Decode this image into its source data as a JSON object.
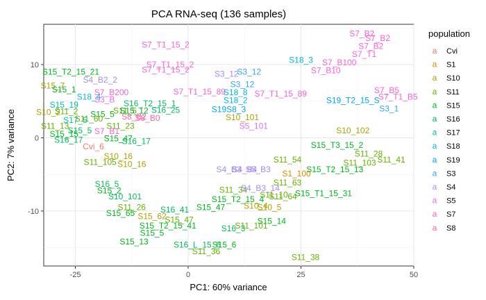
{
  "chart_data": {
    "type": "scatter",
    "title": "PCA RNA-seq (136 samples)",
    "xlabel": "PC1: 60% variance",
    "ylabel": "PC2: 7% variance",
    "xlim": [
      -32,
      50
    ],
    "ylim": [
      -17.5,
      15.5
    ],
    "xticks": [
      -25,
      0,
      25,
      50
    ],
    "yticks": [
      -10,
      0,
      10
    ],
    "grid": true,
    "legend_title": "population",
    "legend_position": "right",
    "populations": [
      {
        "name": "Cvi",
        "color": "#F8766D"
      },
      {
        "name": "S1",
        "color": "#DB8E00"
      },
      {
        "name": "S10",
        "color": "#AEA200"
      },
      {
        "name": "S11",
        "color": "#64B200"
      },
      {
        "name": "S15",
        "color": "#00B81B"
      },
      {
        "name": "S16",
        "color": "#00BD5C"
      },
      {
        "name": "S17",
        "color": "#00C1A7"
      },
      {
        "name": "S18",
        "color": "#00BADE"
      },
      {
        "name": "S19",
        "color": "#00A6FF"
      },
      {
        "name": "S3",
        "color": "#35A2FF"
      },
      {
        "name": "S4",
        "color": "#A58AFF"
      },
      {
        "name": "S5",
        "color": "#DF70F8"
      },
      {
        "name": "S7",
        "color": "#FB61D7"
      },
      {
        "name": "S8",
        "color": "#FF66A8"
      }
    ],
    "points": [
      {
        "label": "S7_B2",
        "x": 38.5,
        "y": 14.2,
        "group": "S7"
      },
      {
        "label": "S7_B2",
        "x": 42,
        "y": 13.6,
        "group": "S7"
      },
      {
        "label": "S7_B2",
        "x": 40.5,
        "y": 12.5,
        "group": "S7"
      },
      {
        "label": "S7_T1",
        "x": 39,
        "y": 11.4,
        "group": "S7"
      },
      {
        "label": "S18_3",
        "x": 25,
        "y": 10.6,
        "group": "S18"
      },
      {
        "label": "S7_B100",
        "x": 33.5,
        "y": 10.3,
        "group": "S7"
      },
      {
        "label": "S7_B10",
        "x": 30.5,
        "y": 9.2,
        "group": "S7"
      },
      {
        "label": "S7_B5",
        "x": 44,
        "y": 6.5,
        "group": "S7"
      },
      {
        "label": "S7_T1_B5",
        "x": 46.5,
        "y": 5.6,
        "group": "S7"
      },
      {
        "label": "S19_T2_15_S",
        "x": 36.5,
        "y": 5.1,
        "group": "S19"
      },
      {
        "label": "S3_1",
        "x": 44.5,
        "y": 4.0,
        "group": "S3"
      },
      {
        "label": "S7_T1_15_2",
        "x": -5,
        "y": 12.7,
        "group": "S7"
      },
      {
        "label": "S7_T1_15_2",
        "x": -4,
        "y": 10.0,
        "group": "S7"
      },
      {
        "label": "S7_T1_15_2",
        "x": -5,
        "y": 9.3,
        "group": "S7"
      },
      {
        "label": "S3_12",
        "x": 8.5,
        "y": 8.7,
        "group": "S4"
      },
      {
        "label": "S3_12",
        "x": 13.5,
        "y": 9.0,
        "group": "S3"
      },
      {
        "label": "S3_12",
        "x": 12,
        "y": 7.3,
        "group": "S3"
      },
      {
        "label": "S7_T1_15_89",
        "x": 2.5,
        "y": 6.3,
        "group": "S7"
      },
      {
        "label": "S18_8",
        "x": 10.5,
        "y": 6.2,
        "group": "S18"
      },
      {
        "label": "S7_T1_15_89",
        "x": 20.5,
        "y": 6.0,
        "group": "S7"
      },
      {
        "label": "S18_2",
        "x": 10.5,
        "y": 5.1,
        "group": "S18"
      },
      {
        "label": "S19S8_3",
        "x": 9,
        "y": 3.9,
        "group": "S19"
      },
      {
        "label": "S10_101",
        "x": 12,
        "y": 2.8,
        "group": "S10"
      },
      {
        "label": "S5_101",
        "x": 14.5,
        "y": 1.6,
        "group": "S5"
      },
      {
        "label": "S10_102",
        "x": 36.5,
        "y": 1.0,
        "group": "S10"
      },
      {
        "label": "S15_T3_15_2",
        "x": 33,
        "y": -1.0,
        "group": "S15"
      },
      {
        "label": "S11_28",
        "x": 40,
        "y": -2.2,
        "group": "S11"
      },
      {
        "label": "S11_41",
        "x": 45,
        "y": -3.0,
        "group": "S11"
      },
      {
        "label": "S11_103",
        "x": 38,
        "y": -3.4,
        "group": "S11"
      },
      {
        "label": "S11_54",
        "x": 22,
        "y": -3.0,
        "group": "S11"
      },
      {
        "label": "S15_T2_15_13",
        "x": 32.5,
        "y": -4.3,
        "group": "S15"
      },
      {
        "label": "S4_B3",
        "x": 9,
        "y": -4.3,
        "group": "S4"
      },
      {
        "label": "S4_B4",
        "x": 12.5,
        "y": -4.3,
        "group": "S4"
      },
      {
        "label": "S5_B3",
        "x": 15.5,
        "y": -4.3,
        "group": "S4"
      },
      {
        "label": "S1_100",
        "x": 24,
        "y": -4.9,
        "group": "S1"
      },
      {
        "label": "S11_63",
        "x": 22,
        "y": -6.1,
        "group": "S11"
      },
      {
        "label": "S11_34",
        "x": 10,
        "y": -7.1,
        "group": "S11"
      },
      {
        "label": "S4_B3_14",
        "x": 16,
        "y": -6.9,
        "group": "S4"
      },
      {
        "label": "S11_10",
        "x": 19,
        "y": -7.8,
        "group": "S11"
      },
      {
        "label": "S11_64",
        "x": 21,
        "y": -8.0,
        "group": "S11"
      },
      {
        "label": "S15_T1_15_31",
        "x": 30,
        "y": -7.6,
        "group": "S15"
      },
      {
        "label": "S15_T2_15_4",
        "x": 11,
        "y": -8.4,
        "group": "S15"
      },
      {
        "label": "S10_4",
        "x": 15,
        "y": -9.3,
        "group": "S10"
      },
      {
        "label": "S10_5",
        "x": 18,
        "y": -9.5,
        "group": "S10"
      },
      {
        "label": "S15_14",
        "x": 18.5,
        "y": -11.4,
        "group": "S15"
      },
      {
        "label": "S11_101",
        "x": 14,
        "y": -12.0,
        "group": "S11"
      },
      {
        "label": "S16_3",
        "x": 10,
        "y": -12.4,
        "group": "S16"
      },
      {
        "label": "S11_38",
        "x": 26,
        "y": -16.3,
        "group": "S11"
      },
      {
        "label": "S15_T2_15_21",
        "x": -26,
        "y": 9.0,
        "group": "S15"
      },
      {
        "label": "S4_B2_2",
        "x": -19.5,
        "y": 7.9,
        "group": "S4"
      },
      {
        "label": "S15_7",
        "x": -30,
        "y": 7.1,
        "group": "S10"
      },
      {
        "label": "S15_1",
        "x": -27.5,
        "y": 6.6,
        "group": "S15"
      },
      {
        "label": "S7_B200",
        "x": -17,
        "y": 6.2,
        "group": "S7"
      },
      {
        "label": "S18_4",
        "x": -22,
        "y": 5.6,
        "group": "S18"
      },
      {
        "label": "S3_B",
        "x": -18.5,
        "y": 5.2,
        "group": "S5"
      },
      {
        "label": "S16_T2_15_1",
        "x": -8.5,
        "y": 4.7,
        "group": "S16"
      },
      {
        "label": "S15_19",
        "x": -27.5,
        "y": 4.5,
        "group": "S17"
      },
      {
        "label": "S10_2",
        "x": -31,
        "y": 3.5,
        "group": "S10"
      },
      {
        "label": "S11_5",
        "x": -14,
        "y": 3.7,
        "group": "S11"
      },
      {
        "label": "S15_12",
        "x": -12,
        "y": 3.7,
        "group": "S15"
      },
      {
        "label": "S16_25",
        "x": -5,
        "y": 3.8,
        "group": "S16"
      },
      {
        "label": "S11_2",
        "x": -27,
        "y": 3.6,
        "group": "S11"
      },
      {
        "label": "S15_5",
        "x": -19,
        "y": 3.2,
        "group": "S15"
      },
      {
        "label": "S8_B2",
        "x": -12,
        "y": 2.9,
        "group": "S8"
      },
      {
        "label": "S8_B0",
        "x": -9,
        "y": 2.7,
        "group": "S8"
      },
      {
        "label": "S11_60",
        "x": -22,
        "y": 2.6,
        "group": "S11"
      },
      {
        "label": "S17_5",
        "x": -25,
        "y": 2.4,
        "group": "S17"
      },
      {
        "label": "S11_23",
        "x": -15,
        "y": 1.6,
        "group": "S11"
      },
      {
        "label": "S11_13",
        "x": -29.5,
        "y": 1.6,
        "group": "S11"
      },
      {
        "label": "S15_5",
        "x": -24,
        "y": 1.0,
        "group": "S16"
      },
      {
        "label": "S7_B1",
        "x": -18,
        "y": 0.9,
        "group": "S7"
      },
      {
        "label": "S15_15",
        "x": -27.5,
        "y": 0.5,
        "group": "S15"
      },
      {
        "label": "S16_17",
        "x": -26.5,
        "y": -0.3,
        "group": "S16"
      },
      {
        "label": "S15_47",
        "x": -15.5,
        "y": -0.1,
        "group": "S15"
      },
      {
        "label": "S16_17",
        "x": -11.5,
        "y": -0.5,
        "group": "S16"
      },
      {
        "label": "Cvi_6",
        "x": -21,
        "y": -1.2,
        "group": "Cvi"
      },
      {
        "label": "S10_16",
        "x": -15.5,
        "y": -2.5,
        "group": "S10"
      },
      {
        "label": "S11_105",
        "x": -19.5,
        "y": -3.3,
        "group": "S11"
      },
      {
        "label": "S10_16",
        "x": -12.5,
        "y": -3.6,
        "group": "S10"
      },
      {
        "label": "S16_5",
        "x": -18,
        "y": -6.3,
        "group": "S16"
      },
      {
        "label": "S15_2",
        "x": -17.5,
        "y": -7.2,
        "group": "S15"
      },
      {
        "label": "S10_101",
        "x": -14,
        "y": -8.0,
        "group": "S16"
      },
      {
        "label": "S11_26",
        "x": -12.5,
        "y": -9.5,
        "group": "S11"
      },
      {
        "label": "S16_41",
        "x": -3,
        "y": -9.8,
        "group": "S16"
      },
      {
        "label": "S15_47",
        "x": 5,
        "y": -9.5,
        "group": "S15"
      },
      {
        "label": "S15_65",
        "x": -15,
        "y": -10.3,
        "group": "S15"
      },
      {
        "label": "S15_62",
        "x": -8,
        "y": -10.7,
        "group": "S10"
      },
      {
        "label": "S15_47",
        "x": -2,
        "y": -11.2,
        "group": "S11"
      },
      {
        "label": "S15_T2_15_41",
        "x": -4.5,
        "y": -12.0,
        "group": "S15"
      },
      {
        "label": "S15_5",
        "x": -8,
        "y": -13.0,
        "group": "S15"
      },
      {
        "label": "S15_13",
        "x": -12,
        "y": -14.2,
        "group": "S15"
      },
      {
        "label": "S16_L_15_6",
        "x": 2,
        "y": -14.6,
        "group": "S16"
      },
      {
        "label": "S15_6",
        "x": 8,
        "y": -14.6,
        "group": "S15"
      },
      {
        "label": "S11_36",
        "x": 4,
        "y": -15.5,
        "group": "S11"
      }
    ]
  }
}
